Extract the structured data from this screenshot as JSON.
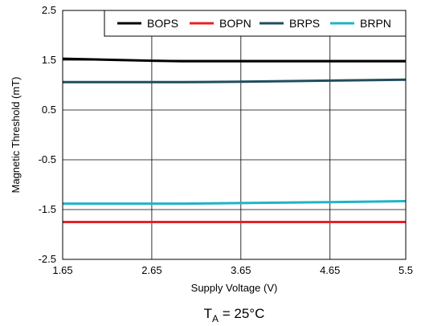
{
  "chart_data": {
    "type": "line",
    "xlabel": "Supply Voltage (V)",
    "ylabel": "Magnetic Threshold (mT)",
    "xlim": [
      1.65,
      5.5
    ],
    "ylim": [
      -2.5,
      2.5
    ],
    "x_ticks": [
      1.65,
      2.65,
      3.65,
      4.65,
      5.5
    ],
    "x_tick_labels": [
      "1.65",
      "2.65",
      "3.65",
      "4.65",
      "5.5"
    ],
    "y_ticks": [
      2.5,
      1.5,
      0.5,
      -0.5,
      -1.5,
      -2.5
    ],
    "y_tick_labels": [
      "2.5",
      "1.5",
      "0.5",
      "-0.5",
      "-1.5",
      "-2.5"
    ],
    "grid": true,
    "legend_position": "top-right",
    "series": [
      {
        "name": "BOPS",
        "color": "#000000",
        "x": [
          1.65,
          2.65,
          3.0,
          3.65,
          4.65,
          5.5
        ],
        "y": [
          1.53,
          1.49,
          1.48,
          1.48,
          1.48,
          1.48
        ]
      },
      {
        "name": "BOPN",
        "color": "#e8202a",
        "x": [
          1.65,
          2.65,
          3.65,
          4.65,
          5.5
        ],
        "y": [
          -1.75,
          -1.75,
          -1.75,
          -1.75,
          -1.75
        ]
      },
      {
        "name": "BRPS",
        "color": "#1f4e5f",
        "x": [
          1.65,
          2.65,
          3.0,
          3.65,
          4.65,
          5.5
        ],
        "y": [
          1.06,
          1.06,
          1.06,
          1.07,
          1.09,
          1.11
        ]
      },
      {
        "name": "BRPN",
        "color": "#1fb3c8",
        "x": [
          1.65,
          2.65,
          3.0,
          3.65,
          4.65,
          5.5
        ],
        "y": [
          -1.38,
          -1.38,
          -1.38,
          -1.37,
          -1.35,
          -1.33
        ]
      }
    ],
    "annotation": {
      "main": "T",
      "sub": "A",
      "rest": " = 25°C"
    }
  }
}
